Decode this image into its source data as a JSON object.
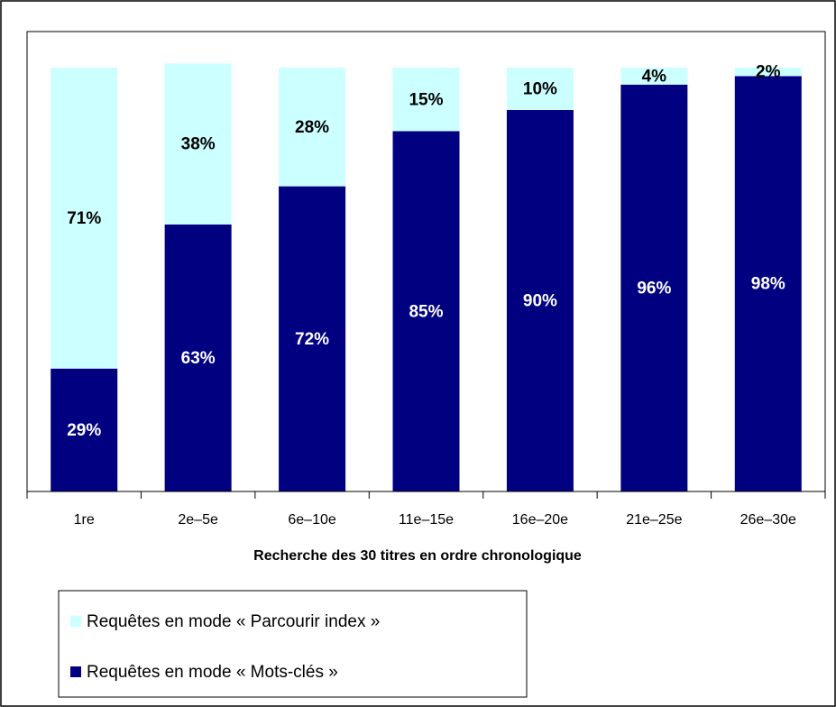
{
  "chart_data": {
    "type": "stacked_bar",
    "x_label": "Recherche des 30 titres en ordre chronologique",
    "categories": [
      "1re",
      "2e–5e",
      "6e–10e",
      "11e–15e",
      "16e–20e",
      "21e–25e",
      "26e–30e"
    ],
    "series": [
      {
        "name": "Requêtes en mode « Parcourir index »",
        "color": "#ccffff",
        "label_color": "#000000",
        "values": [
          71,
          38,
          28,
          15,
          10,
          4,
          2
        ],
        "value_labels": [
          "71%",
          "38%",
          "28%",
          "15%",
          "10%",
          "4%",
          "2%"
        ]
      },
      {
        "name": "Requêtes en mode « Mots-clés »",
        "color": "#000080",
        "label_color": "#ffffff",
        "values": [
          29,
          63,
          72,
          85,
          90,
          96,
          98
        ],
        "value_labels": [
          "29%",
          "63%",
          "72%",
          "85%",
          "90%",
          "96%",
          "98%"
        ]
      }
    ],
    "ylim": [
      0,
      100
    ]
  }
}
